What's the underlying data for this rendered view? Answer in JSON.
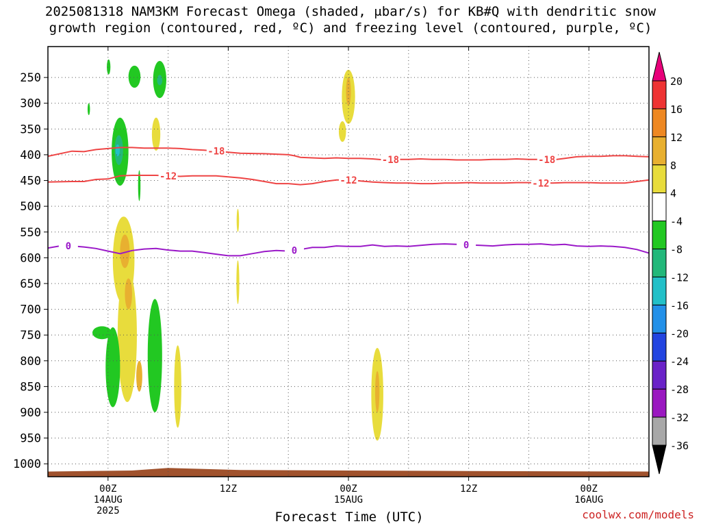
{
  "title_line1": "2025081318 NAM3KM Forecast Omega (shaded, μbar/s) for KB#Q with dendritic snow",
  "title_line2": "growth region (contoured, red, ºC) and freezing level (contoured, purple, ºC)",
  "credit": "coolwx.com/models",
  "chart_data": {
    "type": "heatmap",
    "xlabel": "Forecast Time (UTC)",
    "ylabel": "",
    "x_range_hours": [
      -5,
      45
    ],
    "x_ticks": [
      {
        "hour": 0,
        "lines": [
          "00Z",
          "14AUG",
          "2025"
        ]
      },
      {
        "hour": 10,
        "lines": [
          "12Z"
        ]
      },
      {
        "hour": 20,
        "lines": [
          "00Z",
          "15AUG"
        ]
      },
      {
        "hour": 30,
        "lines": [
          "12Z"
        ]
      },
      {
        "hour": 40,
        "lines": [
          "00Z",
          "16AUG"
        ]
      }
    ],
    "y_range_hpa": [
      1025,
      190
    ],
    "y_ticks": [
      250,
      300,
      350,
      400,
      450,
      500,
      550,
      600,
      650,
      700,
      750,
      800,
      850,
      900,
      950,
      1000
    ],
    "omega_colorbar": {
      "labels": [
        20,
        16,
        12,
        8,
        4,
        -4,
        -8,
        -12,
        -16,
        -20,
        -24,
        -28,
        -32,
        -36
      ],
      "colors": [
        "#e8007a",
        "#ee3333",
        "#ee8822",
        "#e8b030",
        "#e8dc3c",
        "#ffffff",
        "#22c822",
        "#22b87a",
        "#22c0c8",
        "#2290e8",
        "#2244e0",
        "#6a22c8",
        "#9a18c0",
        "#a8a8a8",
        "#000000"
      ]
    },
    "contours": [
      {
        "label": "-18",
        "color": "#ee4444",
        "points": [
          [
            -5,
            403
          ],
          [
            -3,
            393
          ],
          [
            -2,
            394
          ],
          [
            -1,
            390
          ],
          [
            0,
            388
          ],
          [
            1,
            386
          ],
          [
            2,
            386
          ],
          [
            3,
            387
          ],
          [
            4,
            387
          ],
          [
            5,
            387
          ],
          [
            6,
            388
          ],
          [
            7,
            390
          ],
          [
            8,
            391
          ],
          [
            9,
            393
          ],
          [
            10,
            395
          ],
          [
            11,
            397
          ],
          [
            13,
            398
          ],
          [
            15,
            400
          ],
          [
            15.5,
            402
          ],
          [
            16,
            405
          ],
          [
            17,
            406
          ],
          [
            18,
            407
          ],
          [
            19,
            406
          ],
          [
            20,
            407
          ],
          [
            21,
            407
          ],
          [
            22,
            408
          ],
          [
            23,
            410
          ],
          [
            24,
            409
          ],
          [
            25,
            409
          ],
          [
            26,
            408
          ],
          [
            27,
            409
          ],
          [
            28,
            409
          ],
          [
            29,
            410
          ],
          [
            30,
            410
          ],
          [
            31,
            410
          ],
          [
            32,
            409
          ],
          [
            33,
            409
          ],
          [
            34,
            408
          ],
          [
            35,
            409
          ],
          [
            36,
            409
          ],
          [
            37,
            410
          ],
          [
            38,
            407
          ],
          [
            39,
            404
          ],
          [
            40,
            403
          ],
          [
            41,
            403
          ],
          [
            42,
            402
          ],
          [
            43,
            402
          ],
          [
            44,
            403
          ],
          [
            45,
            404
          ]
        ],
        "label_hours": [
          9,
          23.5,
          36.5
        ]
      },
      {
        "label": "-12",
        "color": "#ee4444",
        "points": [
          [
            -5,
            453
          ],
          [
            -3,
            452
          ],
          [
            -2,
            452
          ],
          [
            -1,
            448
          ],
          [
            0,
            447
          ],
          [
            1,
            441
          ],
          [
            2,
            440
          ],
          [
            3,
            440
          ],
          [
            4,
            440
          ],
          [
            5,
            441
          ],
          [
            6,
            442
          ],
          [
            7,
            441
          ],
          [
            8,
            441
          ],
          [
            9,
            441
          ],
          [
            10,
            443
          ],
          [
            11,
            445
          ],
          [
            12,
            448
          ],
          [
            13,
            452
          ],
          [
            14,
            456
          ],
          [
            15,
            456
          ],
          [
            16,
            458
          ],
          [
            17,
            456
          ],
          [
            18,
            452
          ],
          [
            19,
            449
          ],
          [
            20,
            449
          ],
          [
            21,
            451
          ],
          [
            22,
            453
          ],
          [
            23,
            454
          ],
          [
            24,
            455
          ],
          [
            25,
            455
          ],
          [
            26,
            456
          ],
          [
            27,
            456
          ],
          [
            28,
            455
          ],
          [
            29,
            455
          ],
          [
            30,
            454
          ],
          [
            31,
            455
          ],
          [
            32,
            455
          ],
          [
            33,
            455
          ],
          [
            34,
            454
          ],
          [
            35,
            454
          ],
          [
            36,
            455
          ],
          [
            37,
            455
          ],
          [
            38,
            454
          ],
          [
            39,
            454
          ],
          [
            40,
            454
          ],
          [
            41,
            455
          ],
          [
            42,
            455
          ],
          [
            43,
            455
          ],
          [
            44,
            452
          ],
          [
            45,
            449
          ]
        ],
        "label_hours": [
          5,
          20,
          36
        ]
      },
      {
        "label": "0",
        "color": "#9a18c8",
        "points": [
          [
            -5,
            581
          ],
          [
            -4,
            577
          ],
          [
            -3,
            577
          ],
          [
            -2,
            579
          ],
          [
            -1,
            582
          ],
          [
            0,
            587
          ],
          [
            1,
            592
          ],
          [
            2,
            586
          ],
          [
            3,
            583
          ],
          [
            4,
            582
          ],
          [
            5,
            585
          ],
          [
            6,
            587
          ],
          [
            7,
            587
          ],
          [
            8,
            590
          ],
          [
            9,
            593
          ],
          [
            10,
            596
          ],
          [
            11,
            596
          ],
          [
            12,
            592
          ],
          [
            13,
            588
          ],
          [
            14,
            586
          ],
          [
            15,
            587
          ],
          [
            16,
            584
          ],
          [
            17,
            580
          ],
          [
            18,
            580
          ],
          [
            19,
            577
          ],
          [
            20,
            578
          ],
          [
            21,
            578
          ],
          [
            22,
            575
          ],
          [
            23,
            578
          ],
          [
            24,
            577
          ],
          [
            25,
            578
          ],
          [
            26,
            576
          ],
          [
            27,
            574
          ],
          [
            28,
            573
          ],
          [
            29,
            574
          ],
          [
            30,
            575
          ],
          [
            31,
            576
          ],
          [
            32,
            577
          ],
          [
            33,
            575
          ],
          [
            34,
            574
          ],
          [
            35,
            574
          ],
          [
            36,
            573
          ],
          [
            37,
            575
          ],
          [
            38,
            574
          ],
          [
            39,
            577
          ],
          [
            40,
            578
          ],
          [
            41,
            577
          ],
          [
            42,
            578
          ],
          [
            43,
            580
          ],
          [
            44,
            584
          ],
          [
            45,
            591
          ]
        ],
        "label_hours": [
          -3.3,
          15.5,
          29.8
        ]
      }
    ],
    "omega_regions": [
      {
        "hour": 1.0,
        "hpa_top": 328,
        "hpa_bottom": 460,
        "half_width_h": 0.7,
        "fill": "#22c822"
      },
      {
        "hour": 0.9,
        "hpa_top": 362,
        "hpa_bottom": 420,
        "half_width_h": 0.35,
        "fill": "#22b87a"
      },
      {
        "hour": 0.8,
        "hpa_top": 380,
        "hpa_bottom": 403,
        "half_width_h": 0.18,
        "fill": "#22c0c8"
      },
      {
        "hour": 4.3,
        "hpa_top": 218,
        "hpa_bottom": 290,
        "half_width_h": 0.55,
        "fill": "#22c822"
      },
      {
        "hour": 4.3,
        "hpa_top": 245,
        "hpa_bottom": 265,
        "half_width_h": 0.22,
        "fill": "#22b87a"
      },
      {
        "hour": 2.2,
        "hpa_top": 227,
        "hpa_bottom": 270,
        "half_width_h": 0.5,
        "fill": "#22c822"
      },
      {
        "hour": 0.05,
        "hpa_top": 215,
        "hpa_bottom": 244,
        "half_width_h": 0.15,
        "fill": "#22c822"
      },
      {
        "hour": -1.6,
        "hpa_top": 300,
        "hpa_bottom": 323,
        "half_width_h": 0.1,
        "fill": "#22c822"
      },
      {
        "hour": 4.0,
        "hpa_top": 328,
        "hpa_bottom": 392,
        "half_width_h": 0.35,
        "fill": "#e8dc3c"
      },
      {
        "hour": 1.3,
        "hpa_top": 520,
        "hpa_bottom": 690,
        "half_width_h": 0.9,
        "fill": "#e8dc3c"
      },
      {
        "hour": 1.6,
        "hpa_top": 620,
        "hpa_bottom": 880,
        "half_width_h": 0.8,
        "fill": "#e8dc3c"
      },
      {
        "hour": 1.4,
        "hpa_top": 555,
        "hpa_bottom": 620,
        "half_width_h": 0.4,
        "fill": "#e8b030"
      },
      {
        "hour": 1.7,
        "hpa_top": 640,
        "hpa_bottom": 700,
        "half_width_h": 0.3,
        "fill": "#e8b030"
      },
      {
        "hour": 2.6,
        "hpa_top": 800,
        "hpa_bottom": 860,
        "half_width_h": 0.25,
        "fill": "#e8b030"
      },
      {
        "hour": 2.6,
        "hpa_top": 430,
        "hpa_bottom": 490,
        "half_width_h": 0.1,
        "fill": "#22c822"
      },
      {
        "hour": 3.9,
        "hpa_top": 680,
        "hpa_bottom": 900,
        "half_width_h": 0.6,
        "fill": "#22c822"
      },
      {
        "hour": 0.4,
        "hpa_top": 735,
        "hpa_bottom": 890,
        "half_width_h": 0.6,
        "fill": "#22c822"
      },
      {
        "hour": -0.5,
        "hpa_top": 733,
        "hpa_bottom": 758,
        "half_width_h": 0.8,
        "fill": "#22c822"
      },
      {
        "hour": 5.8,
        "hpa_top": 770,
        "hpa_bottom": 930,
        "half_width_h": 0.3,
        "fill": "#e8dc3c"
      },
      {
        "hour": 10.8,
        "hpa_top": 505,
        "hpa_bottom": 550,
        "half_width_h": 0.1,
        "fill": "#e8dc3c"
      },
      {
        "hour": 10.8,
        "hpa_top": 605,
        "hpa_bottom": 690,
        "half_width_h": 0.12,
        "fill": "#e8dc3c"
      },
      {
        "hour": 20.0,
        "hpa_top": 235,
        "hpa_bottom": 340,
        "half_width_h": 0.55,
        "fill": "#e8dc3c"
      },
      {
        "hour": 19.5,
        "hpa_top": 335,
        "hpa_bottom": 375,
        "half_width_h": 0.3,
        "fill": "#e8dc3c"
      },
      {
        "hour": 20.0,
        "hpa_top": 250,
        "hpa_bottom": 305,
        "half_width_h": 0.2,
        "fill": "#e8b030"
      },
      {
        "hour": 22.4,
        "hpa_top": 775,
        "hpa_bottom": 955,
        "half_width_h": 0.5,
        "fill": "#e8dc3c"
      },
      {
        "hour": 22.4,
        "hpa_top": 820,
        "hpa_bottom": 900,
        "half_width_h": 0.18,
        "fill": "#e8b030"
      }
    ],
    "terrain_color": "#a0522d",
    "grid": true
  }
}
